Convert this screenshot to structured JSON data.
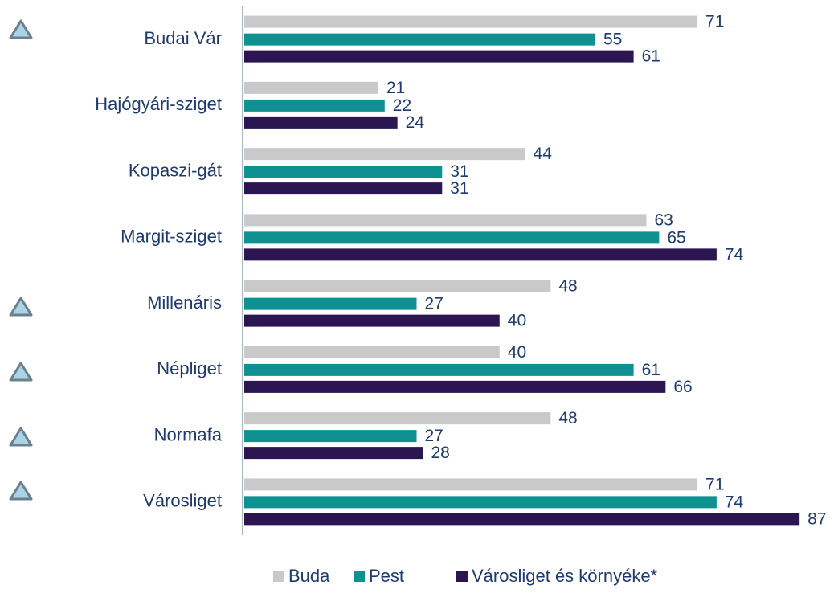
{
  "chart_data": {
    "type": "bar",
    "orientation": "horizontal",
    "categories": [
      "Budai Vár",
      "Hajógyári-sziget",
      "Kopaszi-gát",
      "Margit-sziget",
      "Millenáris",
      "Népliget",
      "Normafa",
      "Városliget"
    ],
    "series": [
      {
        "name": "Buda",
        "color": "#c9c9c9",
        "values": [
          71,
          21,
          44,
          63,
          48,
          40,
          48,
          71
        ]
      },
      {
        "name": "Pest",
        "color": "#0f9191",
        "values": [
          55,
          22,
          31,
          65,
          27,
          61,
          27,
          74
        ]
      },
      {
        "name": "Városliget és környéke*",
        "color": "#2b1652",
        "values": [
          61,
          24,
          31,
          74,
          40,
          66,
          28,
          87
        ]
      }
    ],
    "xlim": [
      0,
      90
    ],
    "legend": "bottom"
  }
}
